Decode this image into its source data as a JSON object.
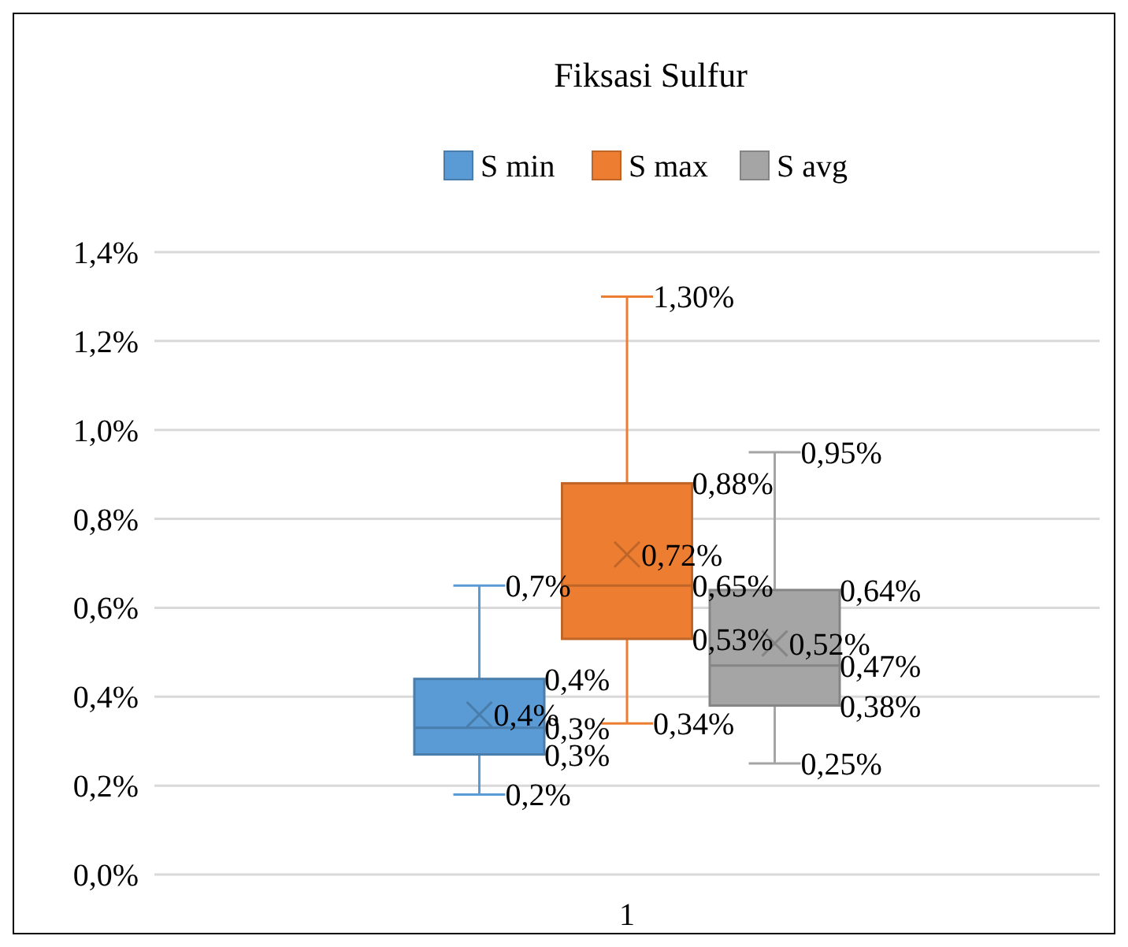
{
  "chart_data": {
    "type": "box",
    "title": "Fiksasi Sulfur",
    "categories": [
      "1"
    ],
    "series": [
      {
        "name": "S min",
        "color": "#5b9bd5",
        "boxes": [
          {
            "low": 0.18,
            "q1": 0.27,
            "median": 0.33,
            "q3": 0.44,
            "high": 0.65,
            "mean": 0.36
          }
        ],
        "value_labels": [
          [
            "0,2%",
            "0,3%",
            "0,3%",
            "0,4%",
            "0,7%",
            "0,4%"
          ]
        ]
      },
      {
        "name": "S max",
        "color": "#ed7d31",
        "boxes": [
          {
            "low": 0.34,
            "q1": 0.53,
            "median": 0.65,
            "q3": 0.88,
            "high": 1.3,
            "mean": 0.72
          }
        ],
        "value_labels": [
          [
            "0,34%",
            "0,53%",
            "0,65%",
            "0,88%",
            "1,30%",
            "0,72%"
          ]
        ]
      },
      {
        "name": "S avg",
        "color": "#a5a5a5",
        "boxes": [
          {
            "low": 0.25,
            "q1": 0.38,
            "median": 0.47,
            "q3": 0.64,
            "high": 0.95,
            "mean": 0.52
          }
        ],
        "value_labels": [
          [
            "0,25%",
            "0,38%",
            "0,47%",
            "0,64%",
            "0,95%",
            "0,52%"
          ]
        ]
      }
    ],
    "ylim": [
      0,
      1.4
    ],
    "yticks": [
      {
        "value": 0,
        "label": "0,0%"
      },
      {
        "value": 0.2,
        "label": "0,2%"
      },
      {
        "value": 0.4,
        "label": "0,4%"
      },
      {
        "value": 0.6,
        "label": "0,6%"
      },
      {
        "value": 0.8,
        "label": "0,8%"
      },
      {
        "value": 1.0,
        "label": "1,0%"
      },
      {
        "value": 1.2,
        "label": "1,2%"
      },
      {
        "value": 1.4,
        "label": "1,4%"
      }
    ],
    "grid": "y",
    "legend": "top",
    "marker": "cross"
  }
}
